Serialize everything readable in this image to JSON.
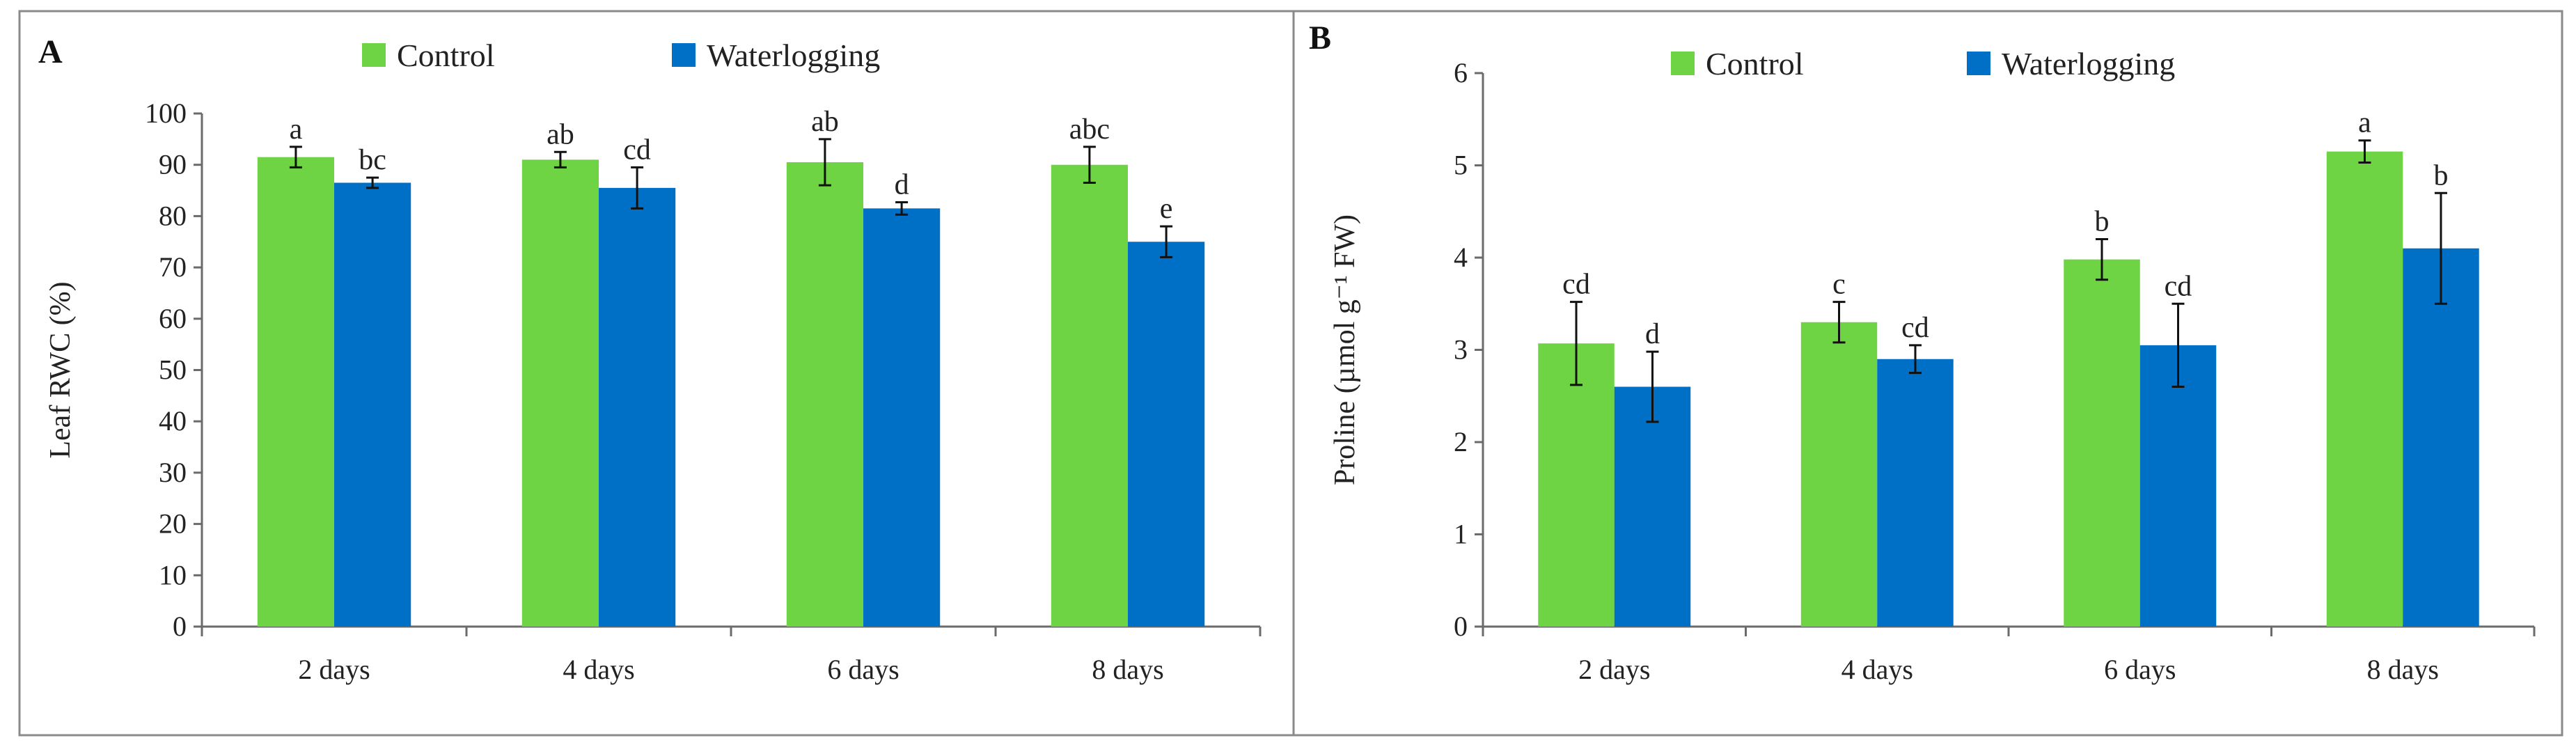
{
  "chart_data": [
    {
      "type": "bar",
      "panel": "A",
      "categories": [
        "2 days",
        "4 days",
        "6 days",
        "8 days"
      ],
      "series": [
        {
          "name": "Control",
          "color": "#6fd444",
          "values": [
            91.5,
            91.0,
            90.5,
            90.0
          ],
          "errors": [
            2.0,
            1.5,
            4.5,
            3.5
          ],
          "labels": [
            "a",
            "ab",
            "ab",
            "abc"
          ]
        },
        {
          "name": "Waterlogging",
          "color": "#0070c6",
          "values": [
            86.5,
            85.5,
            81.5,
            75.0
          ],
          "errors": [
            1.0,
            4.0,
            1.2,
            3.0
          ],
          "labels": [
            "bc",
            "cd",
            "d",
            "e"
          ]
        }
      ],
      "ylabel": "Leaf RWC (%)",
      "xlabel": "",
      "ylim": [
        0,
        100
      ],
      "yticks": [
        0,
        10,
        20,
        30,
        40,
        50,
        60,
        70,
        80,
        90,
        100
      ],
      "legend": "top"
    },
    {
      "type": "bar",
      "panel": "B",
      "categories": [
        "2 days",
        "4 days",
        "6 days",
        "8 days"
      ],
      "series": [
        {
          "name": "Control",
          "color": "#6fd444",
          "values": [
            3.07,
            3.3,
            3.98,
            5.15
          ],
          "errors": [
            0.45,
            0.22,
            0.22,
            0.12
          ],
          "labels": [
            "cd",
            "c",
            "b",
            "a"
          ]
        },
        {
          "name": "Waterlogging",
          "color": "#0070c6",
          "values": [
            2.6,
            2.9,
            3.05,
            4.1
          ],
          "errors": [
            0.38,
            0.15,
            0.45,
            0.6
          ],
          "labels": [
            "d",
            "cd",
            "cd",
            "b"
          ]
        }
      ],
      "ylabel": "Proline (µmol g⁻¹ FW)",
      "xlabel": "",
      "ylim": [
        0,
        6
      ],
      "yticks": [
        0,
        1,
        2,
        3,
        4,
        5,
        6
      ],
      "legend": "top"
    }
  ]
}
